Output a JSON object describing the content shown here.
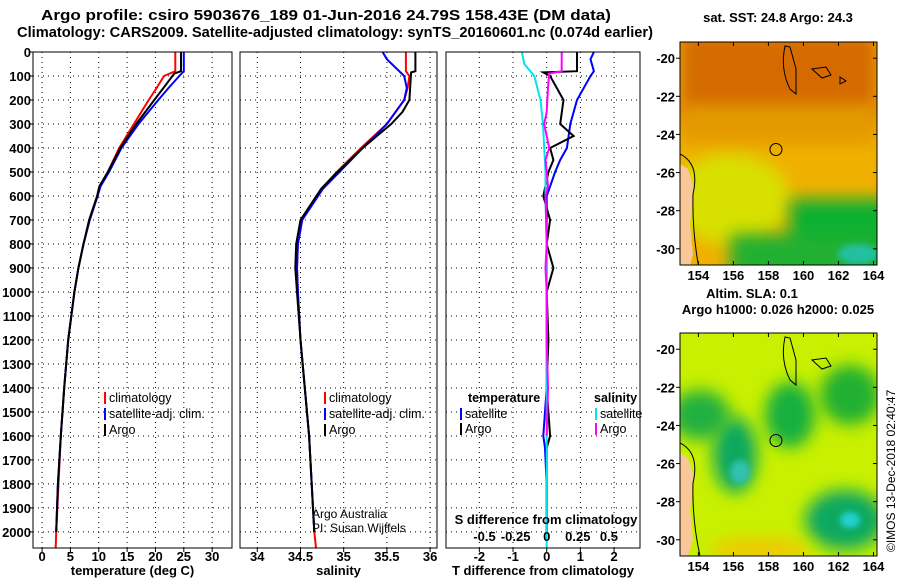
{
  "title": {
    "line1": "Argo profile: csiro 5903676_189 01-Jun-2016 24.79S 158.43E (DM data)",
    "line2": "Climatology: CARS2009. Satellite-adjusted climatology: synTS_20160601.nc (0.074d earlier)"
  },
  "colors": {
    "climatology": "#ff0000",
    "satellite": "#0000ff",
    "argo": "#000000",
    "s_satellite": "#00e5ee",
    "s_argo": "#ff00ff"
  },
  "chart_data": [
    {
      "type": "line",
      "id": "temperature",
      "xlabel": "temperature (deg C)",
      "ylabel": "depth",
      "xlim": [
        -1.6,
        33.5
      ],
      "ylim": [
        2067,
        0
      ],
      "xticks": [
        0,
        5,
        10,
        15,
        20,
        25,
        30
      ],
      "yticks": [
        0,
        100,
        200,
        300,
        400,
        500,
        600,
        700,
        800,
        900,
        1000,
        1100,
        1200,
        1300,
        1400,
        1500,
        1600,
        1700,
        1800,
        1900,
        2000
      ],
      "legend": [
        "climatology",
        "satellite-adj. clim.",
        "Argo"
      ],
      "series": [
        {
          "name": "climatology",
          "color": "#ff0000",
          "depth": [
            0,
            80,
            100,
            150,
            200,
            300,
            400,
            500,
            560,
            600,
            700,
            800,
            900,
            1000,
            1200,
            1400,
            1600,
            1800,
            2000,
            2067
          ],
          "values": [
            23.5,
            23.5,
            21.5,
            20.2,
            18.8,
            16.2,
            13.6,
            11.6,
            10.2,
            9.8,
            8.4,
            7.3,
            6.4,
            5.7,
            4.6,
            3.9,
            3.3,
            2.9,
            2.5,
            2.4
          ]
        },
        {
          "name": "satellite-adj. clim.",
          "color": "#0000ff",
          "depth": [
            0,
            80,
            100,
            150,
            200,
            300,
            400,
            500,
            560,
            600,
            700,
            800,
            900,
            1000,
            1200,
            1400,
            1600,
            1800,
            2000
          ],
          "values": [
            25,
            25,
            24.2,
            22.3,
            20.5,
            17,
            14,
            11.8,
            10.3,
            9.8,
            8.4,
            7.3,
            6.4,
            5.7,
            4.6,
            3.9,
            3.3,
            2.8,
            2.5
          ]
        },
        {
          "name": "Argo",
          "color": "#000000",
          "depth": [
            0,
            80,
            90,
            150,
            200,
            300,
            400,
            500,
            560,
            600,
            700,
            800,
            900,
            1000,
            1200,
            1400,
            1600,
            1800,
            2000
          ],
          "values": [
            24.5,
            24.5,
            23.3,
            21.4,
            19.8,
            16.6,
            13.8,
            11.6,
            10.1,
            9.7,
            8.3,
            7.3,
            6.4,
            5.7,
            4.6,
            3.9,
            3.3,
            2.8,
            2.5
          ]
        }
      ]
    },
    {
      "type": "line",
      "id": "salinity",
      "xlabel": "salinity",
      "xlim": [
        33.8,
        36.08
      ],
      "ylim": [
        2067,
        0
      ],
      "xticks": [
        34,
        34.5,
        35,
        35.5,
        36
      ],
      "xticklabels": [
        "34",
        "34.5",
        "35",
        "35.5",
        "36"
      ],
      "legend": [
        "climatology",
        "satellite-adj. clim.",
        "Argo"
      ],
      "credits": [
        "Argo Australia",
        "PI: Susan Wijffels"
      ],
      "series": [
        {
          "name": "climatology",
          "color": "#ff0000",
          "depth": [
            0,
            80,
            100,
            150,
            200,
            300,
            400,
            500,
            570,
            700,
            800,
            900,
            1000,
            1200,
            1400,
            1600,
            1800,
            2000,
            2067
          ],
          "values": [
            35.72,
            35.72,
            35.76,
            35.74,
            35.7,
            35.5,
            35.2,
            34.92,
            34.74,
            34.52,
            34.47,
            34.46,
            34.47,
            34.5,
            34.55,
            34.6,
            34.63,
            34.66,
            34.68
          ]
        },
        {
          "name": "satellite-adj. clim.",
          "color": "#0000ff",
          "depth": [
            0,
            30,
            100,
            150,
            200,
            300,
            400,
            500,
            570,
            700,
            800,
            900,
            1000,
            1200,
            1400,
            1600,
            1800,
            2000
          ],
          "values": [
            35.45,
            35.5,
            35.7,
            35.73,
            35.7,
            35.5,
            35.22,
            34.95,
            34.76,
            34.52,
            34.47,
            34.46,
            34.47,
            34.5,
            34.55,
            34.6,
            34.63,
            34.66
          ]
        },
        {
          "name": "Argo",
          "color": "#000000",
          "depth": [
            0,
            80,
            85,
            200,
            250,
            300,
            400,
            500,
            570,
            700,
            800,
            900,
            1000,
            1200,
            1400,
            1600,
            1800,
            2000
          ],
          "values": [
            35.83,
            35.83,
            35.78,
            35.76,
            35.68,
            35.55,
            35.22,
            34.93,
            34.74,
            34.5,
            34.45,
            34.44,
            34.46,
            34.5,
            34.55,
            34.6,
            34.63,
            34.66
          ]
        }
      ]
    },
    {
      "type": "line",
      "id": "differences",
      "xlabel": "T difference from climatology",
      "x2label": "S difference from climatology",
      "xlim": [
        -2.99,
        2.77
      ],
      "x2lim": [
        -0.81,
        0.75
      ],
      "ylim": [
        2067,
        0
      ],
      "xticks": [
        -2,
        -1,
        0,
        1,
        2
      ],
      "x2ticks": [
        -0.5,
        -0.25,
        0,
        0.25,
        0.5
      ],
      "x2ticklabels": [
        "-0.5",
        "-0.25",
        "0",
        "0.25",
        "0.5"
      ],
      "legend": {
        "temperature_title": "temperature",
        "salinity_title": "salinity",
        "entries": [
          "satellite",
          "Argo",
          "satellite",
          "Argo"
        ]
      },
      "series": [
        {
          "name": "temperature satellite",
          "axis": "T",
          "color": "#0000ff",
          "depth": [
            0,
            30,
            80,
            100,
            200,
            300,
            400,
            450,
            500,
            560,
            600,
            800,
            1000,
            1200,
            1400,
            1600,
            1650,
            1800,
            2000
          ],
          "values": [
            1.4,
            1.3,
            1.4,
            1.3,
            0.9,
            0.7,
            0.6,
            0.4,
            0.25,
            0.1,
            0,
            0,
            0,
            0,
            0,
            -0.1,
            -0.05,
            0,
            0
          ]
        },
        {
          "name": "temperature Argo",
          "axis": "T",
          "color": "#000000",
          "depth": [
            0,
            80,
            85,
            100,
            150,
            200,
            300,
            350,
            400,
            450,
            500,
            600,
            700,
            800,
            900,
            1000,
            1200,
            1400,
            1600,
            1650,
            2000
          ],
          "values": [
            0.9,
            0.9,
            -0.1,
            0.1,
            0.3,
            0.5,
            0.4,
            0.8,
            0.1,
            0.2,
            0.05,
            -0.1,
            0.1,
            0,
            0.2,
            0,
            0.05,
            0,
            0.1,
            0,
            0
          ]
        },
        {
          "name": "salinity satellite",
          "axis": "S",
          "color": "#00e5ee",
          "depth": [
            0,
            50,
            100,
            200,
            300,
            400,
            500,
            600,
            800,
            1000,
            1200,
            1400,
            1600,
            1800,
            2000,
            2067
          ],
          "values": [
            -0.2,
            -0.18,
            -0.1,
            -0.05,
            -0.03,
            -0.02,
            -0.01,
            -0.01,
            0,
            0,
            0,
            0,
            0,
            0,
            0,
            0
          ]
        },
        {
          "name": "salinity Argo",
          "axis": "S",
          "color": "#ff00ff",
          "depth": [
            0,
            80,
            90,
            150,
            250,
            300,
            400,
            450,
            500,
            560,
            600,
            800,
            900,
            1000,
            1200,
            1400,
            1600
          ],
          "values": [
            0.12,
            0.12,
            0.02,
            0.01,
            0.0,
            -0.02,
            0.02,
            -0.01,
            0.0,
            0.01,
            -0.01,
            0.0,
            -0.01,
            0.0,
            0.0,
            0.01,
            0.0
          ]
        }
      ]
    }
  ],
  "maps": {
    "sst": {
      "title": "sat. SST: 24.8 Argo: 24.3",
      "lon_ticks": [
        154,
        156,
        158,
        160,
        162,
        164
      ],
      "lat_ticks": [
        -20,
        -22,
        -24,
        -26,
        -28,
        -30
      ],
      "lonlim": [
        152.95,
        164.2
      ],
      "latlim": [
        -30.85,
        -19.15
      ],
      "marker": {
        "lon": 158.43,
        "lat": -24.79
      }
    },
    "sla": {
      "title1": "Altim. SLA: 0.1",
      "title2": "Argo h1000: 0.026 h2000: 0.025",
      "lon_ticks": [
        154,
        156,
        158,
        160,
        162,
        164
      ],
      "lat_ticks": [
        -20,
        -22,
        -24,
        -26,
        -28,
        -30
      ],
      "lonlim": [
        152.95,
        164.2
      ],
      "latlim": [
        -30.85,
        -19.15
      ],
      "marker": {
        "lon": 158.43,
        "lat": -24.79
      }
    }
  },
  "footer": {
    "stamp": "©IMOS 13-Dec-2018 02:40:47"
  }
}
